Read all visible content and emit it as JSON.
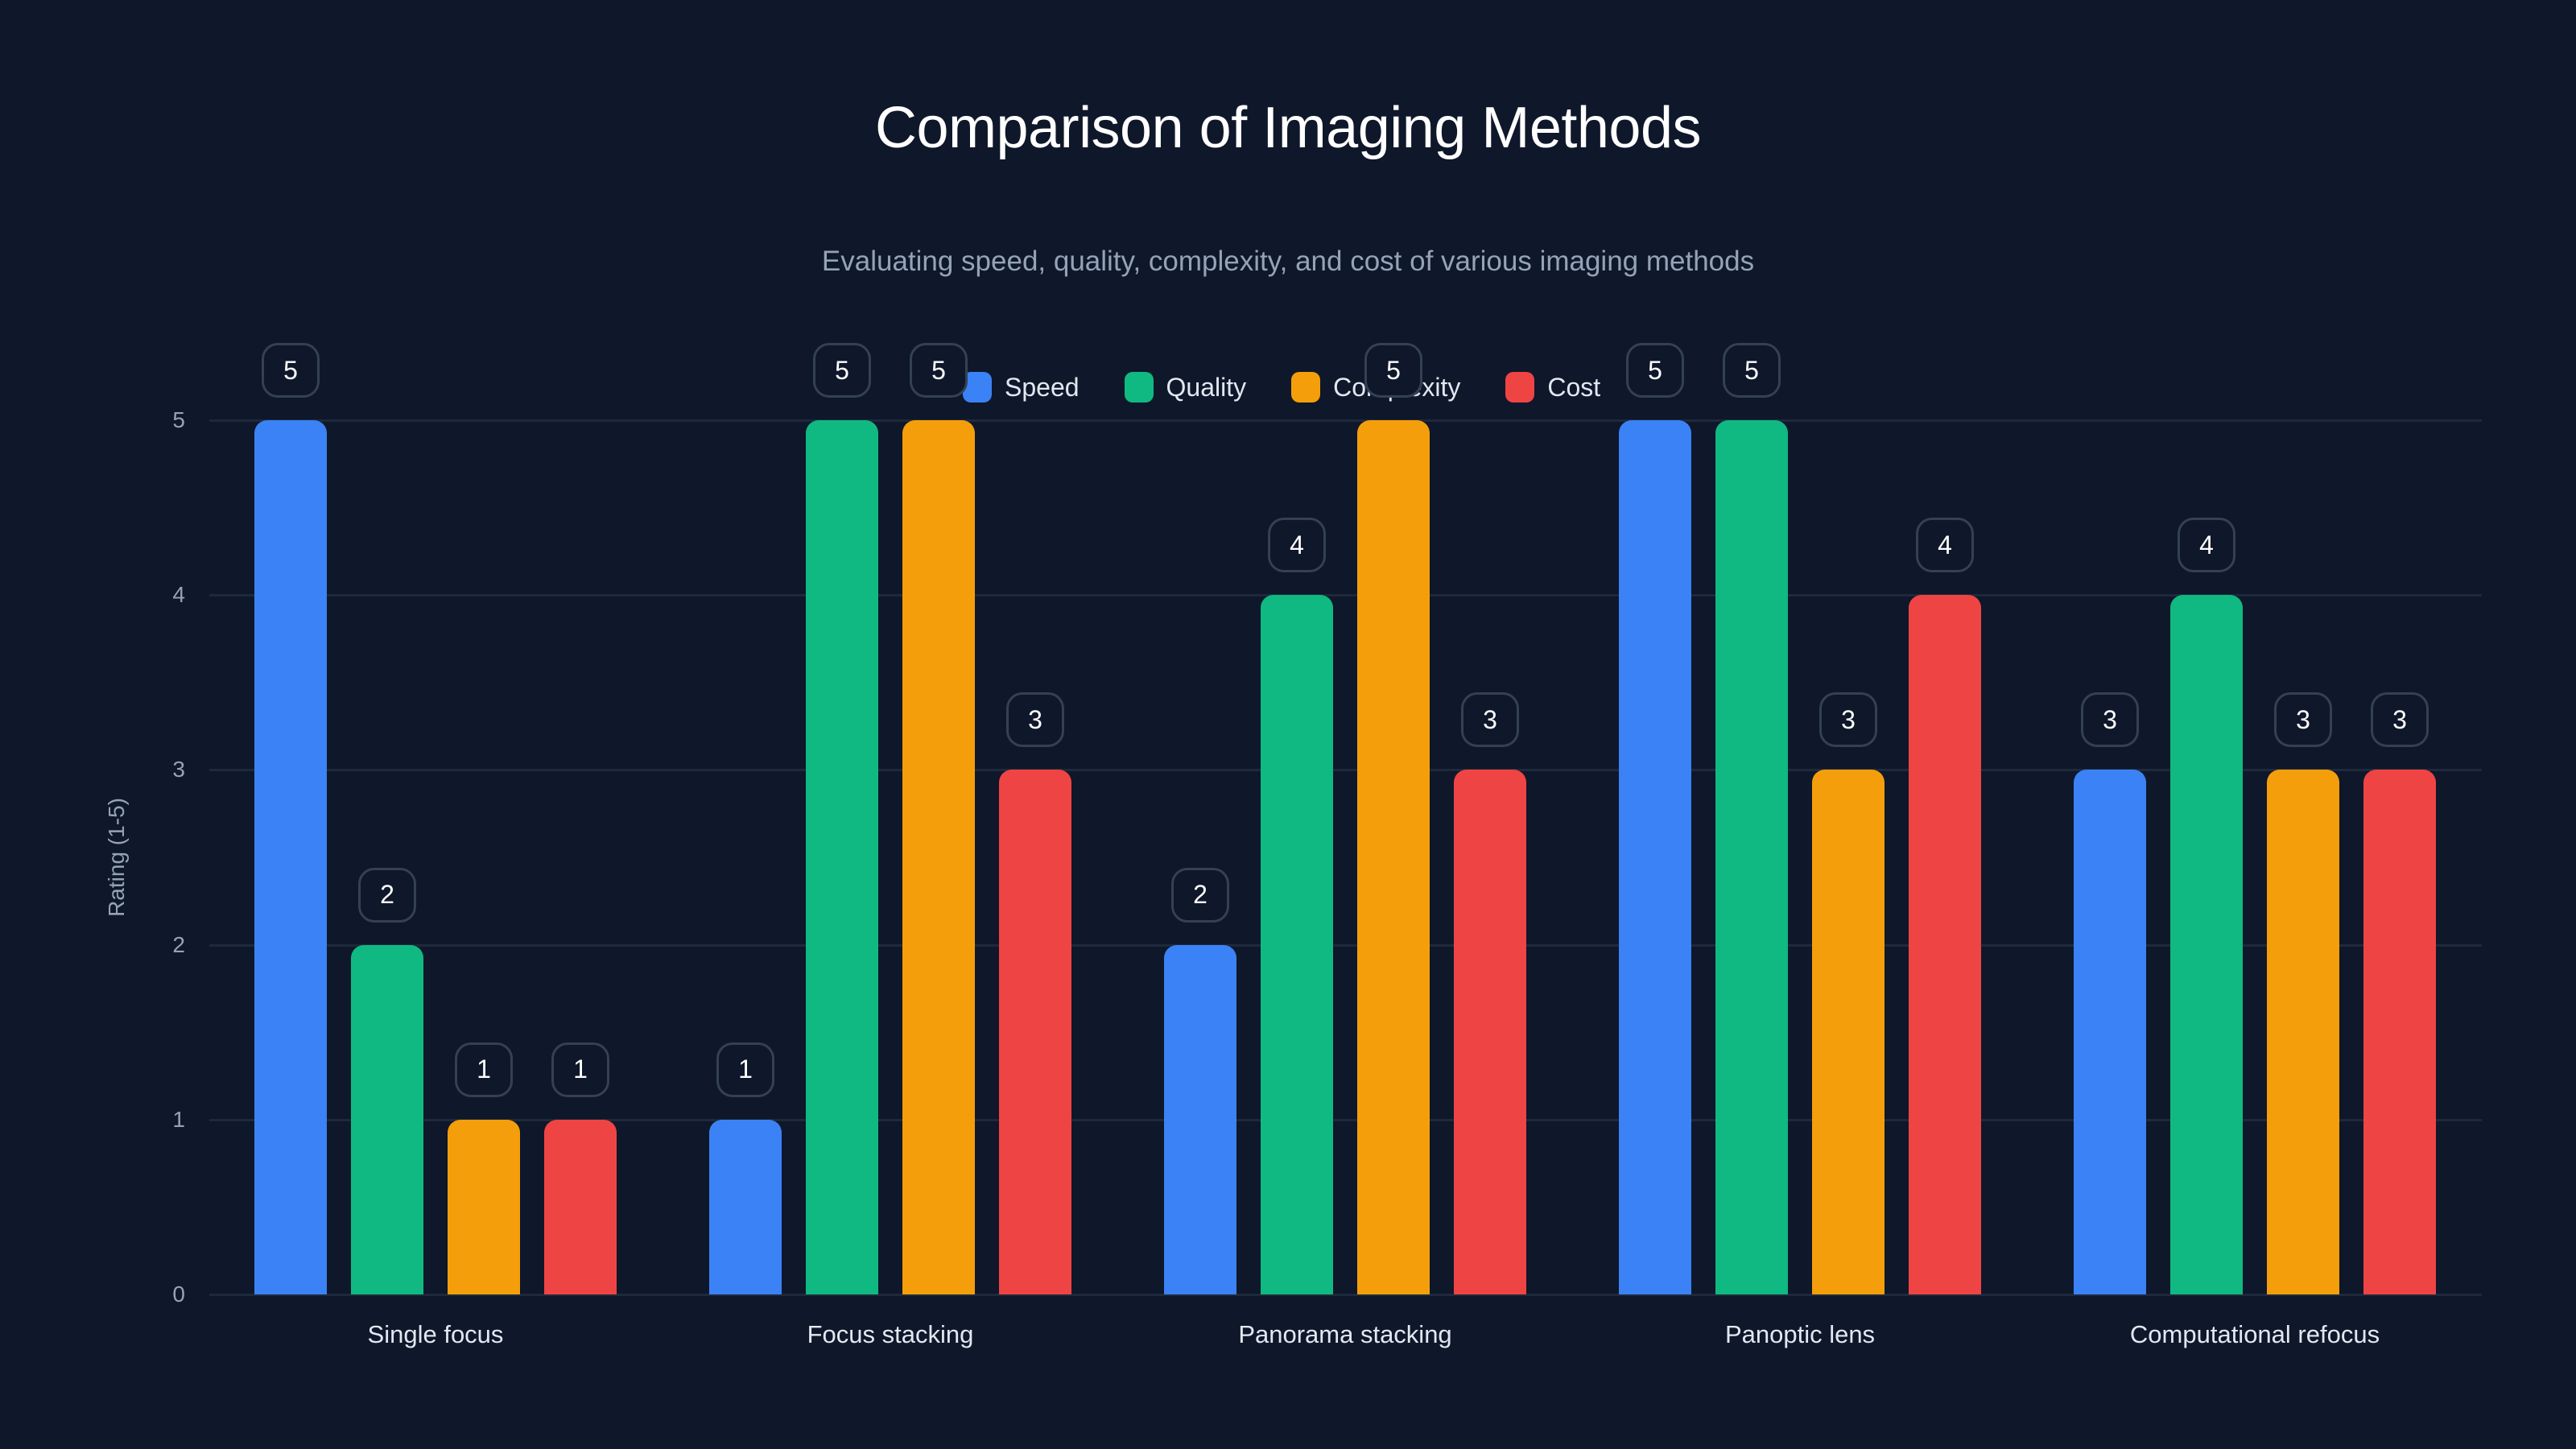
{
  "chart_data": {
    "type": "bar",
    "title": "Comparison of Imaging Methods",
    "subtitle": "Evaluating speed, quality, complexity, and cost of various imaging methods",
    "xlabel": "",
    "ylabel": "Rating (1-5)",
    "ylim": [
      0,
      5
    ],
    "yticks": [
      0,
      1,
      2,
      3,
      4,
      5
    ],
    "grid": true,
    "legend_position": "top-center",
    "categories": [
      "Single focus",
      "Focus stacking",
      "Panorama stacking",
      "Panoptic lens",
      "Computational refocus"
    ],
    "series": [
      {
        "name": "Speed",
        "color": "#3b82f6",
        "values": [
          5,
          1,
          2,
          5,
          3
        ]
      },
      {
        "name": "Quality",
        "color": "#10b981",
        "values": [
          2,
          5,
          4,
          5,
          4
        ]
      },
      {
        "name": "Complexity",
        "color": "#f59e0b",
        "values": [
          1,
          5,
          5,
          3,
          3
        ]
      },
      {
        "name": "Cost",
        "color": "#ef4444",
        "values": [
          1,
          3,
          3,
          4,
          3
        ]
      }
    ]
  },
  "header": {
    "title": "Comparison of Imaging Methods",
    "subtitle": "Evaluating speed, quality, complexity, and cost of various imaging methods"
  },
  "legend": {
    "items": [
      {
        "label": "Speed",
        "color": "#3b82f6"
      },
      {
        "label": "Quality",
        "color": "#10b981"
      },
      {
        "label": "Complexity",
        "color": "#f59e0b"
      },
      {
        "label": "Cost",
        "color": "#ef4444"
      }
    ]
  },
  "axis": {
    "ylabel": "Rating (1-5)",
    "yticks": [
      "0",
      "1",
      "2",
      "3",
      "4",
      "5"
    ]
  },
  "colors": {
    "background": "#0f172a",
    "grid": "#1e293b",
    "label_border": "#334155"
  }
}
